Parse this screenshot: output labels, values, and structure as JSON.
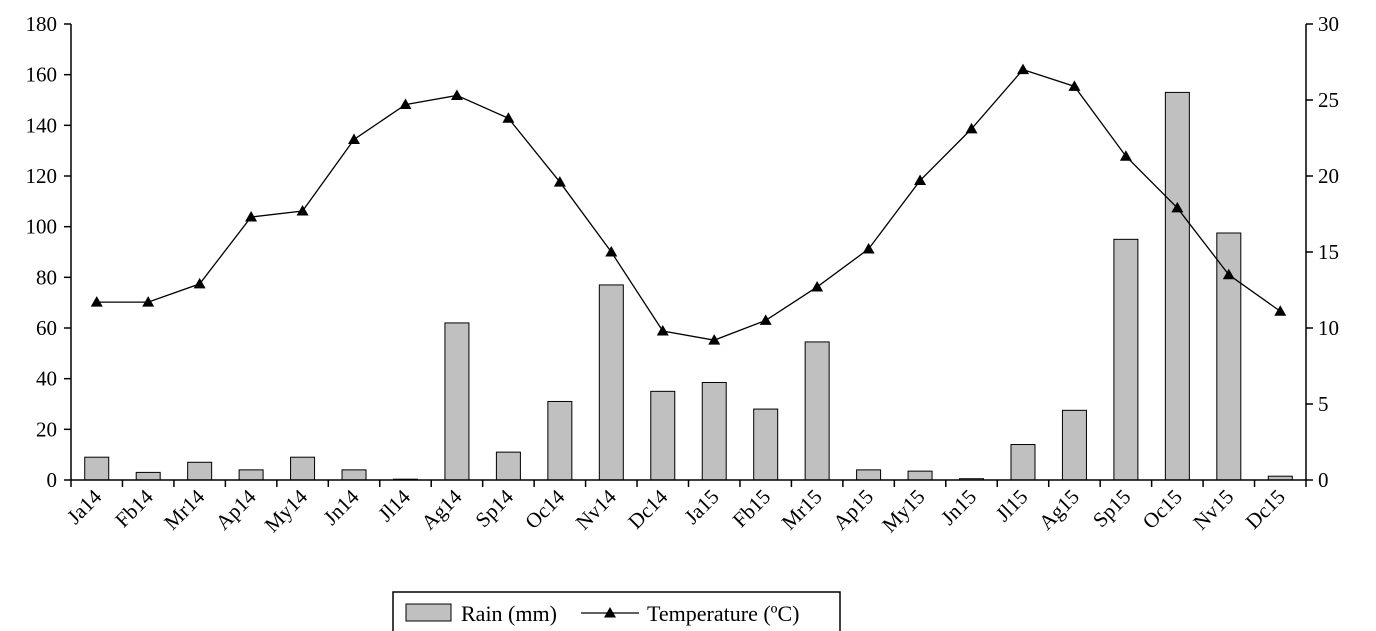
{
  "chart_data": {
    "type": "bar",
    "title": "",
    "xlabel": "",
    "ylabel": "",
    "y2label": "",
    "categories": [
      "Ja14",
      "Fb14",
      "Mr14",
      "Ap14",
      "My14",
      "Jn14",
      "Jl14",
      "Ag14",
      "Sp14",
      "Oc14",
      "Nv14",
      "Dc14",
      "Ja15",
      "Fb15",
      "Mr15",
      "Ap15",
      "My15",
      "Jn15",
      "Jl15",
      "Ag15",
      "Sp15",
      "Oc15",
      "Nv15",
      "Dc15"
    ],
    "ylim": [
      0,
      180
    ],
    "yticks": [
      0,
      20,
      40,
      60,
      80,
      100,
      120,
      140,
      160,
      180
    ],
    "y2lim": [
      0,
      30
    ],
    "y2ticks": [
      0,
      5,
      10,
      15,
      20,
      25,
      30
    ],
    "grid": false,
    "legend_position": "bottom-center",
    "series": [
      {
        "name": "Rain (mm)",
        "type": "bar",
        "axis": "left",
        "color": "#c0c0c0",
        "values": [
          9,
          3,
          7,
          4,
          9,
          4,
          0,
          62,
          11,
          31,
          77,
          35,
          38.5,
          28,
          54.5,
          4,
          3.5,
          0.5,
          14,
          27.5,
          95,
          153,
          97.5,
          1.5
        ]
      },
      {
        "name": "Temperature (ºC)",
        "type": "line",
        "axis": "right",
        "color": "#000000",
        "marker": "triangle",
        "values": [
          11.7,
          11.7,
          12.9,
          17.3,
          17.7,
          22.4,
          24.7,
          25.3,
          23.8,
          19.6,
          15.0,
          9.8,
          9.2,
          10.5,
          12.7,
          15.2,
          19.7,
          23.1,
          27.0,
          25.9,
          21.3,
          17.9,
          13.5,
          11.1
        ]
      }
    ]
  }
}
